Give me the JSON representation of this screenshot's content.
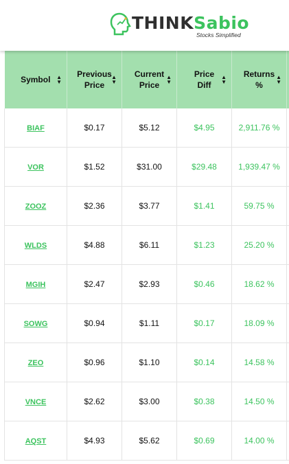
{
  "brand": {
    "name_part1": "THINK",
    "name_part2": "Sabio",
    "tagline": "Stocks Simplified",
    "accent_color": "#3cc35e",
    "header_bg": "#a3dfae"
  },
  "table": {
    "columns": [
      {
        "line1": "Symbol",
        "line2": ""
      },
      {
        "line1": "Previous",
        "line2": "Price"
      },
      {
        "line1": "Current",
        "line2": "Price"
      },
      {
        "line1": "Price",
        "line2": "Diff"
      },
      {
        "line1": "Returns",
        "line2": "%"
      }
    ],
    "rows": [
      {
        "symbol": "BIAF",
        "prev": "$0.17",
        "curr": "$5.12",
        "diff": "$4.95",
        "ret": "2,911.76 %"
      },
      {
        "symbol": "VOR",
        "prev": "$1.52",
        "curr": "$31.00",
        "diff": "$29.48",
        "ret": "1,939.47 %"
      },
      {
        "symbol": "ZOOZ",
        "prev": "$2.36",
        "curr": "$3.77",
        "diff": "$1.41",
        "ret": "59.75 %"
      },
      {
        "symbol": "WLDS",
        "prev": "$4.88",
        "curr": "$6.11",
        "diff": "$1.23",
        "ret": "25.20 %"
      },
      {
        "symbol": "MGIH",
        "prev": "$2.47",
        "curr": "$2.93",
        "diff": "$0.46",
        "ret": "18.62 %"
      },
      {
        "symbol": "SOWG",
        "prev": "$0.94",
        "curr": "$1.11",
        "diff": "$0.17",
        "ret": "18.09 %"
      },
      {
        "symbol": "ZEO",
        "prev": "$0.96",
        "curr": "$1.10",
        "diff": "$0.14",
        "ret": "14.58 %"
      },
      {
        "symbol": "VNCE",
        "prev": "$2.62",
        "curr": "$3.00",
        "diff": "$0.38",
        "ret": "14.50 %"
      },
      {
        "symbol": "AQST",
        "prev": "$4.93",
        "curr": "$5.62",
        "diff": "$0.69",
        "ret": "14.00 %"
      }
    ]
  }
}
